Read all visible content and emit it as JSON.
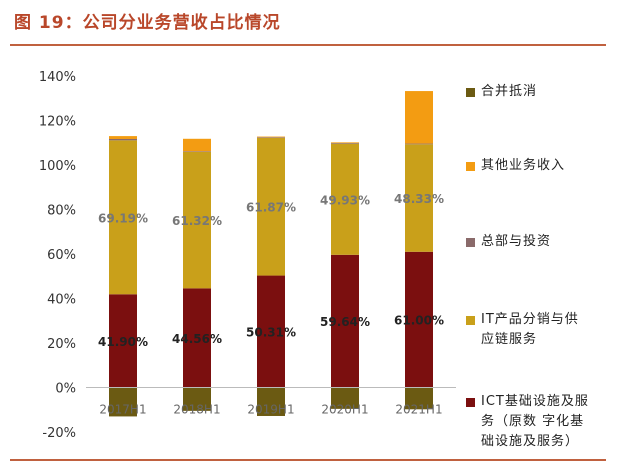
{
  "header": {
    "title": "图 19：公司分业务营收占比情况"
  },
  "colors": {
    "title": "#b9472a",
    "rule": "#c0613f",
    "ict": "#7b0f0f",
    "it": "#c9a01a",
    "hq": "#8a6a6a",
    "other": "#f39c12",
    "elim": "#6b5a12"
  },
  "chart_data": {
    "type": "bar",
    "stacked": true,
    "categories": [
      "2017H1",
      "2018H1",
      "2019H1",
      "2020H1",
      "2021H1"
    ],
    "ylim": [
      -20,
      140
    ],
    "yticks": [
      "-20%",
      "0%",
      "20%",
      "40%",
      "60%",
      "80%",
      "100%",
      "120%",
      "140%"
    ],
    "ytick_values": [
      -20,
      0,
      20,
      40,
      60,
      80,
      100,
      120,
      140
    ],
    "grid": false,
    "legend_position": "right",
    "series": [
      {
        "key": "ict",
        "name": "ICT基础设施及服务（原数字化基础设施及服务）",
        "values": [
          41.9,
          44.56,
          50.31,
          59.64,
          61.0
        ],
        "labels": [
          "41.90%",
          "44.56%",
          "50.31%",
          "59.64%",
          "61.00%"
        ]
      },
      {
        "key": "it",
        "name": "IT产品分销与供应链服务",
        "values": [
          69.19,
          61.32,
          61.87,
          49.93,
          48.33
        ],
        "labels": [
          "69.19%",
          "61.32%",
          "61.87%",
          "49.93%",
          "48.33%"
        ]
      },
      {
        "key": "hq",
        "name": "总部与投资",
        "values": [
          0.6,
          0.3,
          0.3,
          0.3,
          0.3
        ]
      },
      {
        "key": "other",
        "name": "其他业务收入",
        "values": [
          1.3,
          5.6,
          0.3,
          0.3,
          23.6
        ]
      },
      {
        "key": "elim",
        "name": "合并抵消",
        "values": [
          -13.0,
          -10.5,
          -12.8,
          -9.6,
          -9.8
        ]
      }
    ]
  },
  "legend": {
    "items": [
      {
        "key": "elim",
        "lines": [
          "合并抵消"
        ]
      },
      {
        "key": "other",
        "lines": [
          "其他业务收入"
        ]
      },
      {
        "key": "hq",
        "lines": [
          "总部与投资"
        ]
      },
      {
        "key": "it",
        "lines": [
          "IT产品分销与供",
          "应链服务"
        ]
      },
      {
        "key": "ict",
        "lines": [
          "ICT基础设施及服",
          "务（原数 字化基",
          "础设施及服务）"
        ]
      }
    ]
  }
}
